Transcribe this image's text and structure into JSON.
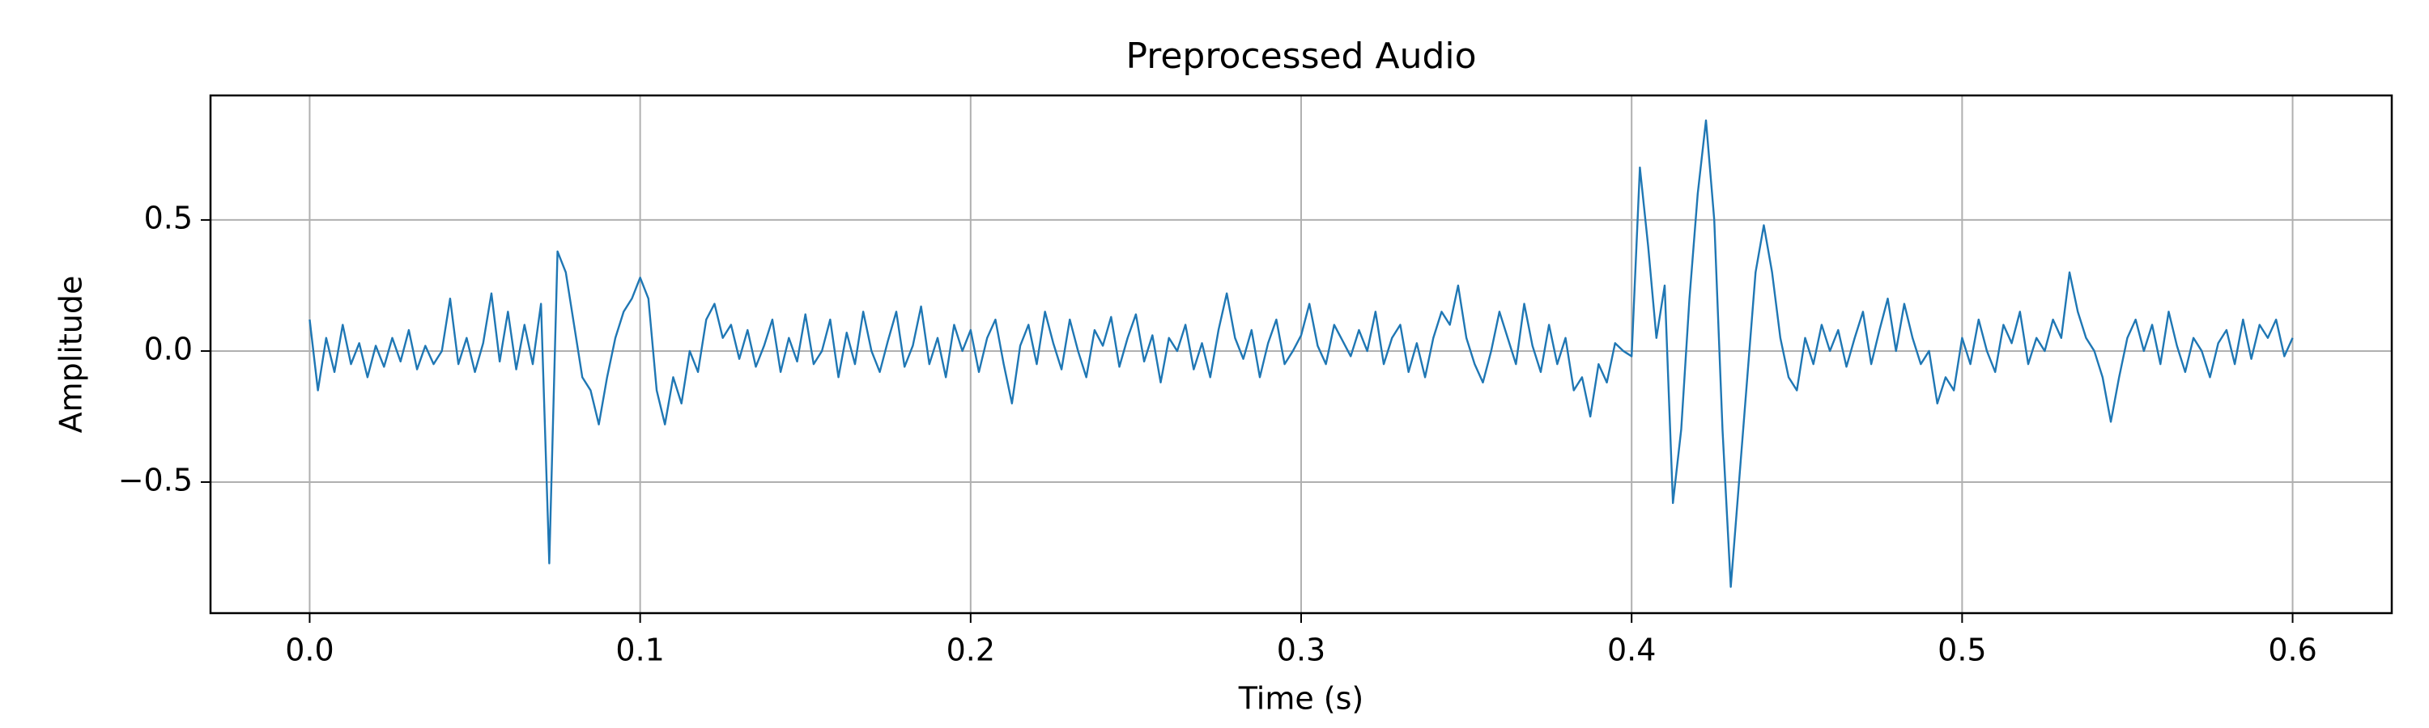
{
  "chart_data": {
    "type": "line",
    "title": "Preprocessed Audio",
    "x_label": "Time (s)",
    "y_label": "Amplitude",
    "x": [
      0,
      0.0025,
      0.005,
      0.0075,
      0.01,
      0.0125,
      0.015,
      0.0175,
      0.02,
      0.0225,
      0.025,
      0.0275,
      0.03,
      0.0325,
      0.035,
      0.0375,
      0.04,
      0.0425,
      0.045,
      0.0475,
      0.05,
      0.0525,
      0.055,
      0.0575,
      0.06,
      0.0625,
      0.065,
      0.0675,
      0.07,
      0.0725,
      0.075,
      0.0775,
      0.08,
      0.0825,
      0.085,
      0.0875,
      0.09,
      0.0925,
      0.095,
      0.0975,
      0.1,
      0.1025,
      0.105,
      0.1075,
      0.11,
      0.1125,
      0.115,
      0.1175,
      0.12,
      0.1225,
      0.125,
      0.1275,
      0.13,
      0.1325,
      0.135,
      0.1375,
      0.14,
      0.1425,
      0.145,
      0.1475,
      0.15,
      0.1525,
      0.155,
      0.1575,
      0.16,
      0.1625,
      0.165,
      0.1675,
      0.17,
      0.1725,
      0.175,
      0.1775,
      0.18,
      0.1825,
      0.185,
      0.1875,
      0.19,
      0.1925,
      0.195,
      0.1975,
      0.2,
      0.2025,
      0.205,
      0.2075,
      0.21,
      0.2125,
      0.215,
      0.2175,
      0.22,
      0.2225,
      0.225,
      0.2275,
      0.23,
      0.2325,
      0.235,
      0.2375,
      0.24,
      0.2425,
      0.245,
      0.2475,
      0.25,
      0.2525,
      0.255,
      0.2575,
      0.26,
      0.2625,
      0.265,
      0.2675,
      0.27,
      0.2725,
      0.275,
      0.2775,
      0.28,
      0.2825,
      0.285,
      0.2875,
      0.29,
      0.2925,
      0.295,
      0.2975,
      0.3,
      0.3025,
      0.305,
      0.3075,
      0.31,
      0.3125,
      0.315,
      0.3175,
      0.32,
      0.3225,
      0.325,
      0.3275,
      0.33,
      0.3325,
      0.335,
      0.3375,
      0.34,
      0.3425,
      0.345,
      0.3475,
      0.35,
      0.3525,
      0.355,
      0.3575,
      0.36,
      0.3625,
      0.365,
      0.3675,
      0.37,
      0.3725,
      0.375,
      0.3775,
      0.38,
      0.3825,
      0.385,
      0.3875,
      0.39,
      0.3925,
      0.395,
      0.3975,
      0.4,
      0.4025,
      0.405,
      0.4075,
      0.41,
      0.4125,
      0.415,
      0.4175,
      0.42,
      0.4225,
      0.425,
      0.4275,
      0.43,
      0.4325,
      0.435,
      0.4375,
      0.44,
      0.4425,
      0.445,
      0.4475,
      0.45,
      0.4525,
      0.455,
      0.4575,
      0.46,
      0.4625,
      0.465,
      0.4675,
      0.47,
      0.4725,
      0.475,
      0.4775,
      0.48,
      0.4825,
      0.485,
      0.4875,
      0.49,
      0.4925,
      0.495,
      0.4975,
      0.5,
      0.5025,
      0.505,
      0.5075,
      0.51,
      0.5125,
      0.515,
      0.5175,
      0.52,
      0.5225,
      0.525,
      0.5275,
      0.53,
      0.5325,
      0.535,
      0.5375,
      0.54,
      0.5425,
      0.545,
      0.5475,
      0.55,
      0.5525,
      0.555,
      0.5575,
      0.56,
      0.5625,
      0.565,
      0.5675,
      0.57,
      0.5725,
      0.575,
      0.5775,
      0.58,
      0.5825,
      0.585,
      0.5875,
      0.59,
      0.5925,
      0.595,
      0.5975,
      0.6
    ],
    "series": [
      {
        "color": "#1f77b4",
        "values": [
          0.12,
          -0.15,
          0.05,
          -0.08,
          0.1,
          -0.05,
          0.03,
          -0.1,
          0.02,
          -0.06,
          0.05,
          -0.04,
          0.08,
          -0.07,
          0.02,
          -0.05,
          0.0,
          0.2,
          -0.05,
          0.05,
          -0.08,
          0.03,
          0.22,
          -0.04,
          0.15,
          -0.07,
          0.1,
          -0.05,
          0.18,
          -0.81,
          0.38,
          0.3,
          0.1,
          -0.1,
          -0.15,
          -0.28,
          -0.1,
          0.05,
          0.15,
          0.2,
          0.28,
          0.2,
          -0.15,
          -0.28,
          -0.1,
          -0.2,
          0.0,
          -0.08,
          0.12,
          0.18,
          0.05,
          0.1,
          -0.03,
          0.08,
          -0.06,
          0.02,
          0.12,
          -0.08,
          0.05,
          -0.04,
          0.14,
          -0.05,
          0.0,
          0.12,
          -0.1,
          0.07,
          -0.05,
          0.15,
          0.0,
          -0.08,
          0.04,
          0.15,
          -0.06,
          0.02,
          0.17,
          -0.05,
          0.05,
          -0.1,
          0.1,
          0.0,
          0.08,
          -0.08,
          0.05,
          0.12,
          -0.05,
          -0.2,
          0.02,
          0.1,
          -0.05,
          0.15,
          0.03,
          -0.07,
          0.12,
          0.0,
          -0.1,
          0.08,
          0.02,
          0.13,
          -0.06,
          0.05,
          0.14,
          -0.04,
          0.06,
          -0.12,
          0.05,
          0.0,
          0.1,
          -0.07,
          0.03,
          -0.1,
          0.08,
          0.22,
          0.05,
          -0.03,
          0.08,
          -0.1,
          0.03,
          0.12,
          -0.05,
          0.0,
          0.06,
          0.18,
          0.02,
          -0.05,
          0.1,
          0.04,
          -0.02,
          0.08,
          0.0,
          0.15,
          -0.05,
          0.05,
          0.1,
          -0.08,
          0.03,
          -0.1,
          0.05,
          0.15,
          0.1,
          0.25,
          0.05,
          -0.05,
          -0.12,
          0.0,
          0.15,
          0.05,
          -0.05,
          0.18,
          0.02,
          -0.08,
          0.1,
          -0.05,
          0.05,
          -0.15,
          -0.1,
          -0.25,
          -0.05,
          -0.12,
          0.03,
          0.0,
          -0.02,
          0.7,
          0.4,
          0.05,
          0.25,
          -0.58,
          -0.3,
          0.2,
          0.6,
          0.88,
          0.5,
          -0.3,
          -0.9,
          -0.5,
          -0.1,
          0.3,
          0.48,
          0.3,
          0.05,
          -0.1,
          -0.15,
          0.05,
          -0.05,
          0.1,
          0.0,
          0.08,
          -0.06,
          0.05,
          0.15,
          -0.05,
          0.08,
          0.2,
          0.0,
          0.18,
          0.05,
          -0.05,
          0.0,
          -0.2,
          -0.1,
          -0.15,
          0.05,
          -0.05,
          0.12,
          0.0,
          -0.08,
          0.1,
          0.03,
          0.15,
          -0.05,
          0.05,
          0.0,
          0.12,
          0.05,
          0.3,
          0.15,
          0.05,
          0.0,
          -0.1,
          -0.27,
          -0.1,
          0.05,
          0.12,
          0.0,
          0.1,
          -0.05,
          0.15,
          0.02,
          -0.08,
          0.05,
          0.0,
          -0.1,
          0.03,
          0.08,
          -0.05,
          0.12,
          -0.03,
          0.1,
          0.05,
          0.12,
          -0.02,
          0.05
        ]
      }
    ],
    "xlim": [
      -0.03,
      0.63
    ],
    "ylim": [
      -1.0,
      0.975
    ],
    "xticks": [
      {
        "value": 0,
        "label": "0.0"
      },
      0.1,
      0.2,
      0.3,
      0.4,
      0.5,
      0.6
    ],
    "yticks": [
      {
        "value": -0.5,
        "label": "−0.5"
      },
      {
        "value": 0,
        "label": "0.0"
      },
      {
        "value": 0.5,
        "label": "0.5"
      }
    ],
    "grid": true
  }
}
